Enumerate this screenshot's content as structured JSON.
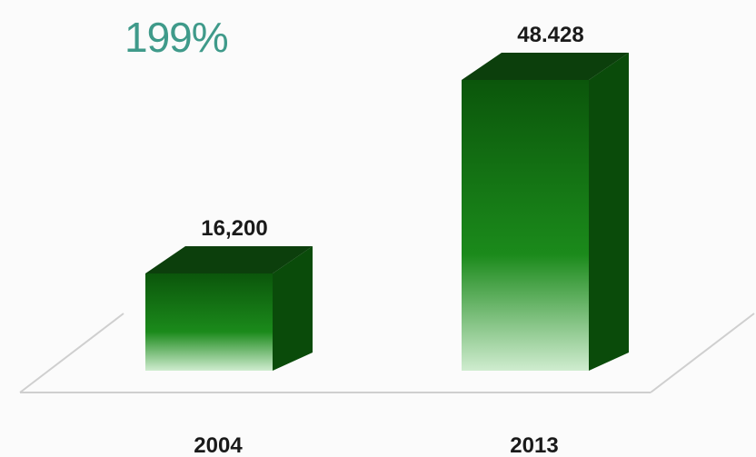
{
  "annotation": {
    "growth_label": "199%"
  },
  "colors": {
    "bar_top": "#0c3f0c",
    "bar_side": "#0a4b0a",
    "bar_front_dark": "#0b560b",
    "bar_front_mid": "#1b8a1b",
    "bar_front_light": "#cfeccf",
    "annotation": "#3f9a8a",
    "floor_line": "#cfcfcf"
  },
  "chart_data": {
    "type": "bar",
    "style": "3d",
    "categories": [
      "2004",
      "2013"
    ],
    "values": [
      16200,
      48428
    ],
    "data_labels": [
      "16,200",
      "48.428"
    ],
    "ylim": [
      0,
      48428
    ],
    "grid": false,
    "legend": "none",
    "title": "",
    "xlabel": "",
    "ylabel": ""
  }
}
